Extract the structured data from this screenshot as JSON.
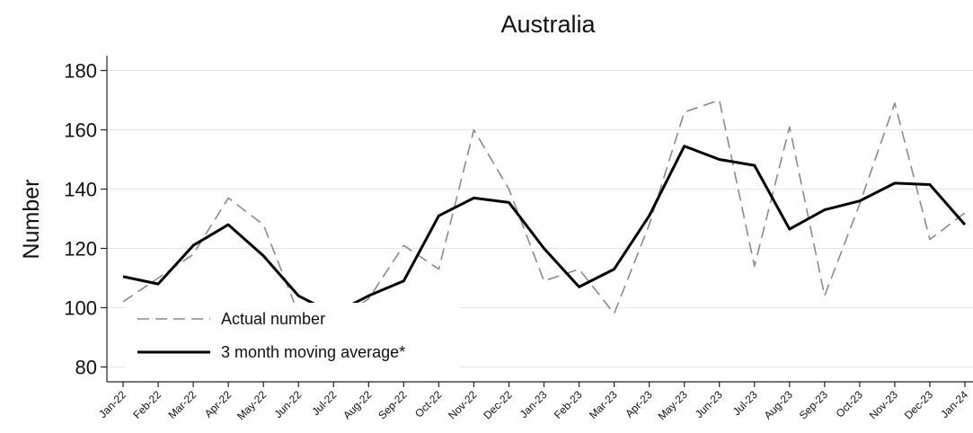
{
  "chart_data": {
    "type": "line",
    "title": "Australia",
    "xlabel": "",
    "ylabel": "Number",
    "ylim": [
      75,
      185
    ],
    "yticks": [
      80,
      100,
      120,
      140,
      160,
      180
    ],
    "grid": true,
    "legend_position": "bottom-left",
    "categories": [
      "Jan-22",
      "Feb-22",
      "Mar-22",
      "Apr-22",
      "May-22",
      "Jun-22",
      "Jul-22",
      "Aug-22",
      "Sep-22",
      "Oct-22",
      "Nov-22",
      "Dec-22",
      "Jan-23",
      "Feb-23",
      "Mar-23",
      "Apr-23",
      "May-23",
      "Jun-23",
      "Jul-23",
      "Aug-23",
      "Sep-23",
      "Oct-23",
      "Nov-23",
      "Dec-23",
      "Jan-24"
    ],
    "series": [
      {
        "name": "Actual number",
        "style": "dashed",
        "color": "#8a8a8a",
        "values": [
          102,
          110,
          118,
          137,
          128,
          98,
          95,
          103,
          121,
          113,
          160,
          140,
          109,
          113,
          98,
          128,
          166,
          170,
          114,
          161,
          104,
          135,
          169,
          123,
          132
        ]
      },
      {
        "name": "3 month moving average*",
        "style": "solid",
        "color": "#000000",
        "values": [
          110.5,
          108,
          121,
          128,
          117.5,
          104,
          98,
          104,
          109,
          131,
          137,
          135.5,
          120,
          107,
          113,
          131,
          154.5,
          150,
          148,
          126.5,
          133,
          136,
          142,
          141.5,
          128
        ]
      }
    ]
  }
}
